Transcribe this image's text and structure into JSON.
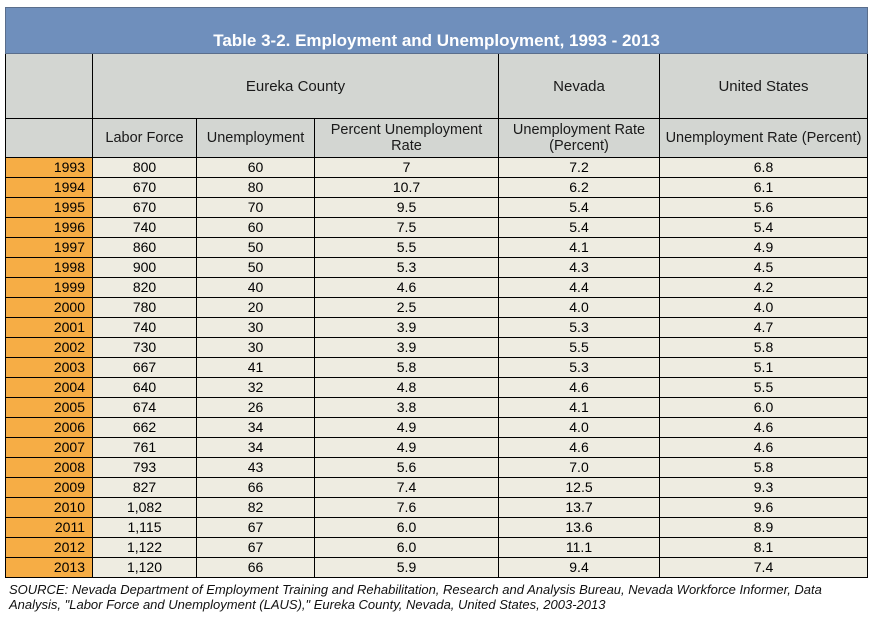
{
  "title": "Table 3-2. Employment and Unemployment, 1993 - 2013",
  "groups": {
    "eureka": "Eureka County",
    "nevada": "Nevada",
    "us": "United States"
  },
  "columns": {
    "labor_force": "Labor Force",
    "unemployment": "Unemployment",
    "pct_rate": "Percent Unemployment Rate",
    "nv_rate": "Unemployment Rate (Percent)",
    "us_rate": "Unemployment Rate (Percent)"
  },
  "rows": [
    [
      "1993",
      "800",
      "60",
      "7",
      "7.2",
      "6.8"
    ],
    [
      "1994",
      "670",
      "80",
      "10.7",
      "6.2",
      "6.1"
    ],
    [
      "1995",
      "670",
      "70",
      "9.5",
      "5.4",
      "5.6"
    ],
    [
      "1996",
      "740",
      "60",
      "7.5",
      "5.4",
      "5.4"
    ],
    [
      "1997",
      "860",
      "50",
      "5.5",
      "4.1",
      "4.9"
    ],
    [
      "1998",
      "900",
      "50",
      "5.3",
      "4.3",
      "4.5"
    ],
    [
      "1999",
      "820",
      "40",
      "4.6",
      "4.4",
      "4.2"
    ],
    [
      "2000",
      "780",
      "20",
      "2.5",
      "4.0",
      "4.0"
    ],
    [
      "2001",
      "740",
      "30",
      "3.9",
      "5.3",
      "4.7"
    ],
    [
      "2002",
      "730",
      "30",
      "3.9",
      "5.5",
      "5.8"
    ],
    [
      "2003",
      "667",
      "41",
      "5.8",
      "5.3",
      "5.1"
    ],
    [
      "2004",
      "640",
      "32",
      "4.8",
      "4.6",
      "5.5"
    ],
    [
      "2005",
      "674",
      "26",
      "3.8",
      "4.1",
      "6.0"
    ],
    [
      "2006",
      "662",
      "34",
      "4.9",
      "4.0",
      "4.6"
    ],
    [
      "2007",
      "761",
      "34",
      "4.9",
      "4.6",
      "4.6"
    ],
    [
      "2008",
      "793",
      "43",
      "5.6",
      "7.0",
      "5.8"
    ],
    [
      "2009",
      "827",
      "66",
      "7.4",
      "12.5",
      "9.3"
    ],
    [
      "2010",
      "1,082",
      "82",
      "7.6",
      "13.7",
      "9.6"
    ],
    [
      "2011",
      "1,115",
      "67",
      "6.0",
      "13.6",
      "8.9"
    ],
    [
      "2012",
      "1,122",
      "67",
      "6.0",
      "11.1",
      "8.1"
    ],
    [
      "2013",
      "1,120",
      "66",
      "5.9",
      "9.4",
      "7.4"
    ]
  ],
  "source": "SOURCE: Nevada Department of Employment Training and Rehabilitation, Research and Analysis Bureau, Nevada Workforce Informer, Data Analysis, \"Labor Force and Unemployment (LAUS),\" Eureka County, Nevada, United States, 2003-2013"
}
